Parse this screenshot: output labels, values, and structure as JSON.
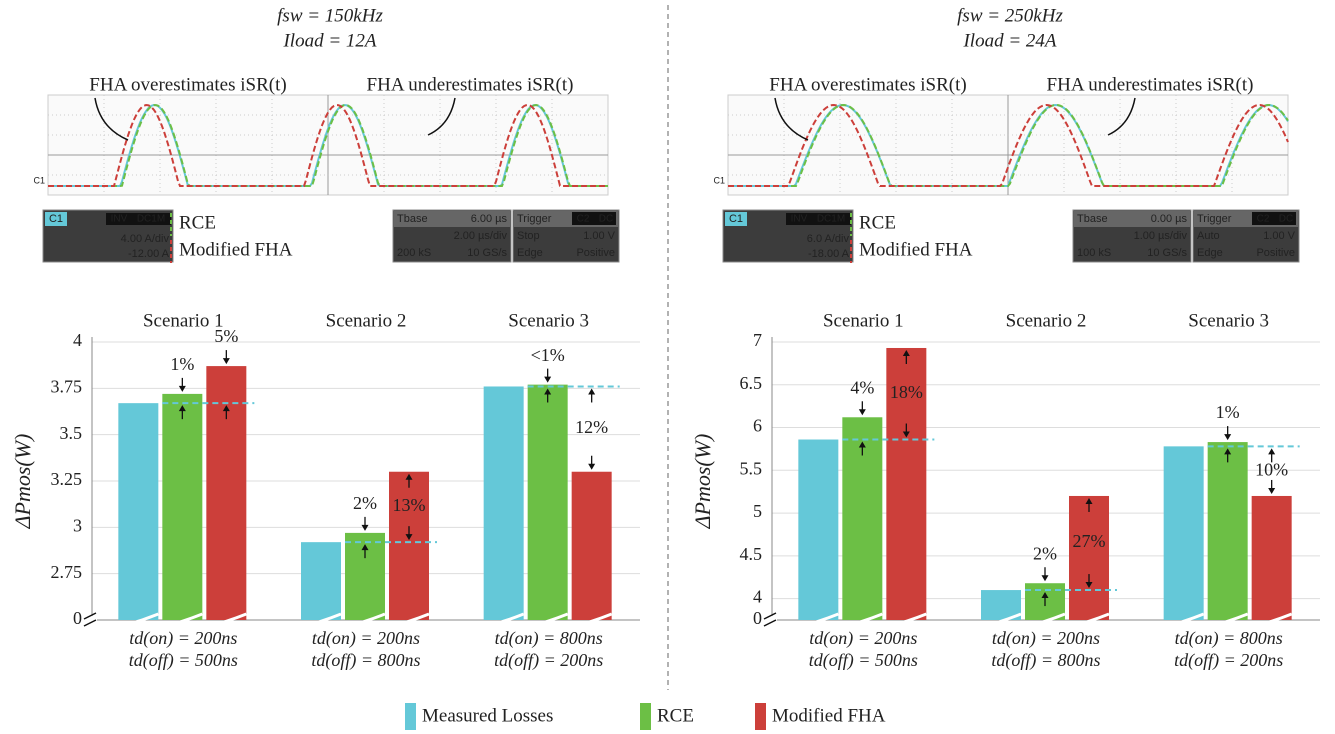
{
  "chart_data": [
    {
      "type": "bar",
      "conditions": [
        "fsw = 150kHz",
        "Iload = 12A"
      ],
      "annotations": [
        "FHA overestimates iSR(t)",
        "FHA underestimates iSR(t)"
      ],
      "scope": {
        "trace_label": "C1",
        "channel": {
          "name": "C1",
          "flags": [
            "INV",
            "DC1M"
          ],
          "scale": "4.00 A/div",
          "offset": "-12.00 A"
        },
        "legend": [
          "RCE",
          "Modified FHA"
        ],
        "timebase": {
          "title": "Tbase",
          "delay": "6.00 µs",
          "scale": "2.00 µs/div",
          "samples": "200 kS",
          "rate": "10 GS/s"
        },
        "trigger": {
          "title": "Trigger",
          "source": [
            "C2",
            "DC"
          ],
          "mode": "Stop",
          "level": "1.00 V",
          "type": "Edge",
          "slope": "Positive"
        }
      },
      "ylabel": "ΔPmos(W)",
      "categories": [
        "Scenario 1",
        "Scenario 2",
        "Scenario 3"
      ],
      "x_labels": [
        [
          "td(on) = 200ns",
          "td(off) = 500ns"
        ],
        [
          "td(on) = 200ns",
          "td(off) = 800ns"
        ],
        [
          "td(on) = 800ns",
          "td(off) = 200ns"
        ]
      ],
      "series": [
        {
          "name": "Measured Losses",
          "color": "#64c8d8",
          "values": [
            3.67,
            2.92,
            3.76
          ]
        },
        {
          "name": "RCE",
          "color": "#6cbf45",
          "values": [
            3.72,
            2.97,
            3.77
          ],
          "annotations": [
            "1%",
            "2%",
            "<1%"
          ]
        },
        {
          "name": "Modified FHA",
          "color": "#cc3f3a",
          "values": [
            3.87,
            3.3,
            3.3
          ],
          "annotations": [
            "5%",
            "13%",
            "12%"
          ]
        }
      ],
      "ylim": [
        0,
        4
      ],
      "ybreak": [
        0,
        2.5
      ],
      "yticks": [
        0,
        2.75,
        3,
        3.25,
        3.5,
        3.75,
        4
      ],
      "grid": true
    },
    {
      "type": "bar",
      "conditions": [
        "fsw = 250kHz",
        "Iload = 24A"
      ],
      "annotations": [
        "FHA overestimates iSR(t)",
        "FHA underestimates iSR(t)"
      ],
      "scope": {
        "trace_label": "C1",
        "channel": {
          "name": "C1",
          "flags": [
            "INV",
            "DC1M"
          ],
          "scale": "6.0 A/div",
          "offset": "-18.00 A"
        },
        "legend": [
          "RCE",
          "Modified FHA"
        ],
        "timebase": {
          "title": "Tbase",
          "delay": "0.00 µs",
          "scale": "1.00 µs/div",
          "samples": "100 kS",
          "rate": "10 GS/s"
        },
        "trigger": {
          "title": "Trigger",
          "source": [
            "C2",
            "DC"
          ],
          "mode": "Auto",
          "level": "1.00 V",
          "type": "Edge",
          "slope": "Positive"
        }
      },
      "ylabel": "ΔPmos(W)",
      "categories": [
        "Scenario 1",
        "Scenario 2",
        "Scenario 3"
      ],
      "x_labels": [
        [
          "td(on) = 200ns",
          "td(off) = 500ns"
        ],
        [
          "td(on) = 200ns",
          "td(off) = 800ns"
        ],
        [
          "td(on) = 800ns",
          "td(off) = 200ns"
        ]
      ],
      "series": [
        {
          "color": "#64c8d8",
          "values": [
            5.86,
            4.1,
            5.78
          ]
        },
        {
          "color": "#6cbf45",
          "values": [
            6.12,
            4.18,
            5.83
          ],
          "annotations": [
            "4%",
            "2%",
            "1%"
          ]
        },
        {
          "color": "#cc3f3a",
          "values": [
            6.93,
            5.2,
            5.2
          ],
          "annotations": [
            "18%",
            "27%",
            "10%"
          ]
        }
      ],
      "ylim": [
        0,
        7
      ],
      "ybreak": [
        0,
        3.75
      ],
      "yticks": [
        0,
        4,
        4.5,
        5,
        5.5,
        6,
        6.5,
        7
      ],
      "grid": true
    }
  ]
}
